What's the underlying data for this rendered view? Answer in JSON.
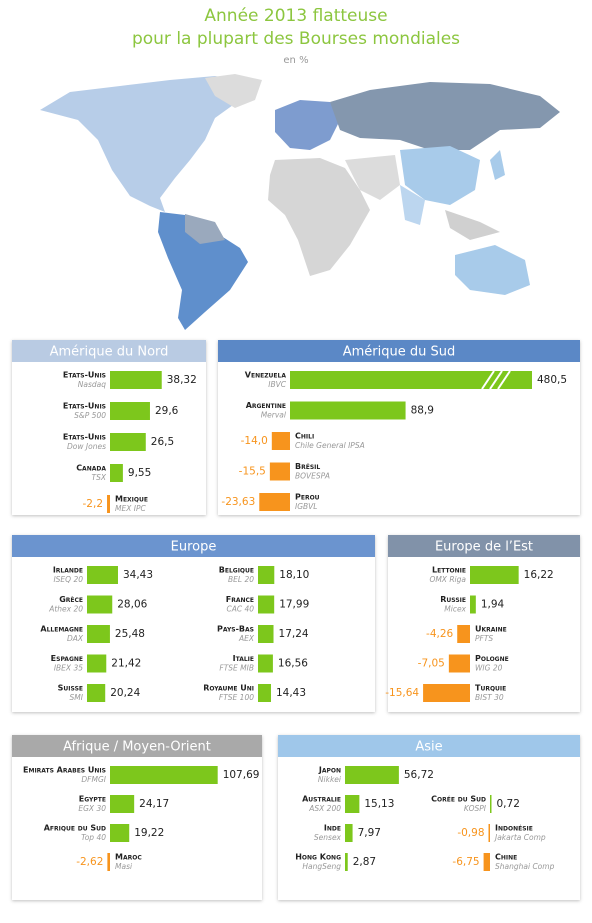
{
  "title_lines": [
    "Année 2013 flatteuse",
    "pour la plupart des Bourses mondiales"
  ],
  "subtitle": "en %",
  "chart_data": [
    {
      "type": "bar",
      "title": "Amérique du Nord",
      "header_color": "#b9cbe3",
      "color": "#7dc71c",
      "negative_color": "#f7941d",
      "groups": [
        {
          "categories": [
            "Etats-Unis",
            "Etats-Unis",
            "Etats-Unis",
            "Canada",
            "Mexique"
          ],
          "indices": [
            "Nasdaq",
            "S&P 500",
            "Dow Jones",
            "TSX",
            "MEX IPC"
          ],
          "values": [
            38.32,
            29.6,
            26.5,
            9.55,
            -2.2
          ],
          "value_labels": [
            "38,32",
            "29,6",
            "26,5",
            "9,55",
            "-2,2"
          ]
        }
      ]
    },
    {
      "type": "bar",
      "title": "Amérique du Sud",
      "header_color": "#5b88c6",
      "color": "#7dc71c",
      "negative_color": "#f7941d",
      "scale_break": true,
      "groups": [
        {
          "categories": [
            "Venezuela",
            "Argentine",
            "Chili",
            "Brésil",
            "Perou"
          ],
          "indices": [
            "IBVC",
            "Merval",
            "Chile General IPSA",
            "BOVESPA",
            "IGBVL"
          ],
          "values": [
            480.5,
            88.9,
            -14.0,
            -15.5,
            -23.63
          ],
          "value_labels": [
            "480,5",
            "88,9",
            "-14,0",
            "-15,5",
            "-23,63"
          ]
        }
      ]
    },
    {
      "type": "bar",
      "title": "Europe",
      "header_color": "#6b94cf",
      "color": "#7dc71c",
      "negative_color": "#f7941d",
      "groups": [
        {
          "categories": [
            "Irlande",
            "Grèce",
            "Allemagne",
            "Espagne",
            "Suisse"
          ],
          "indices": [
            "ISEQ 20",
            "Athex 20",
            "DAX",
            "IBEX 35",
            "SMI"
          ],
          "values": [
            34.43,
            28.06,
            25.48,
            21.42,
            20.24
          ],
          "value_labels": [
            "34,43",
            "28,06",
            "25,48",
            "21,42",
            "20,24"
          ]
        },
        {
          "categories": [
            "Belgique",
            "France",
            "Pays-Bas",
            "Italie",
            "Royaume Uni"
          ],
          "indices": [
            "BEL 20",
            "CAC 40",
            "AEX",
            "FTSE MIB",
            "FTSE 100"
          ],
          "values": [
            18.1,
            17.99,
            17.24,
            16.56,
            14.43
          ],
          "value_labels": [
            "18,10",
            "17,99",
            "17,24",
            "16,56",
            "14,43"
          ]
        }
      ]
    },
    {
      "type": "bar",
      "title": "Europe de l’Est",
      "header_color": "#8192a9",
      "color": "#7dc71c",
      "negative_color": "#f7941d",
      "groups": [
        {
          "categories": [
            "Lettonie",
            "Russie",
            "Ukraine",
            "Pologne",
            "Turquie"
          ],
          "indices": [
            "OMX Riga",
            "Micex",
            "PFTS",
            "WIG 20",
            "BIST 30"
          ],
          "values": [
            16.22,
            1.94,
            -4.26,
            -7.05,
            -15.64
          ],
          "value_labels": [
            "16,22",
            "1,94",
            "-4,26",
            "-7,05",
            "-15,64"
          ]
        }
      ]
    },
    {
      "type": "bar",
      "title": "Afrique / Moyen-Orient",
      "header_color": "#a9a9a9",
      "color": "#7dc71c",
      "negative_color": "#f7941d",
      "groups": [
        {
          "categories": [
            "Emirats Arabes Unis",
            "Egypte",
            "Afrique du Sud",
            "Maroc"
          ],
          "indices": [
            "DFMGI",
            "EGX 30",
            "Top 40",
            "Masi"
          ],
          "values": [
            107.69,
            24.17,
            19.22,
            -2.62
          ],
          "value_labels": [
            "107,69",
            "24,17",
            "19,22",
            "-2,62"
          ]
        }
      ]
    },
    {
      "type": "bar",
      "title": "Asie",
      "header_color": "#9fc7ea",
      "color": "#7dc71c",
      "negative_color": "#f7941d",
      "groups": [
        {
          "categories": [
            "Japon",
            "Australie",
            "Inde",
            "Hong Kong"
          ],
          "indices": [
            "Nikkei",
            "ASX 200",
            "Sensex",
            "HangSeng"
          ],
          "values": [
            56.72,
            15.13,
            7.97,
            2.87
          ],
          "value_labels": [
            "56,72",
            "15,13",
            "7,97",
            "2,87"
          ]
        },
        {
          "categories": [
            "Corée du Sud",
            "Indonésie",
            "Chine"
          ],
          "indices": [
            "KOSPI",
            "Jakarta Comp",
            "Shanghai Comp"
          ],
          "values": [
            0.72,
            -0.98,
            -6.75
          ],
          "value_labels": [
            "0,72",
            "-0,98",
            "-6,75"
          ]
        }
      ]
    }
  ]
}
